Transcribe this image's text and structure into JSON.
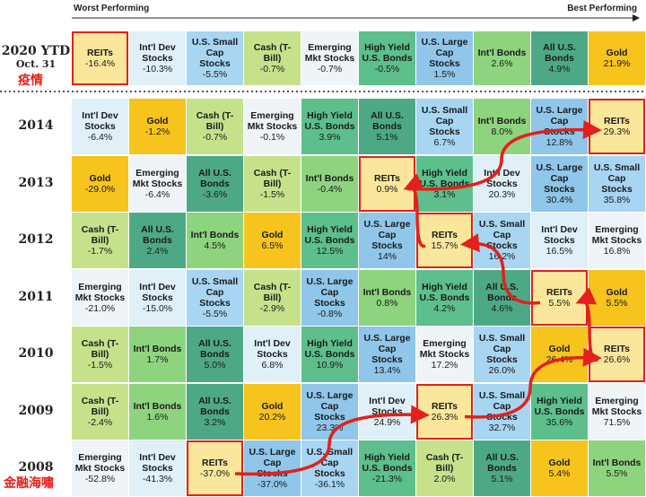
{
  "header": {
    "worst": "Worst Performing",
    "best": "Best Performing"
  },
  "highlight_color": "#e3201b",
  "asset_classes": [
    {
      "name": "REITs",
      "color": "#fbe79b",
      "highlight": true
    },
    {
      "name": "Int'l Dev Stocks",
      "color": "#dff0f9"
    },
    {
      "name": "U.S. Small Cap Stocks",
      "color": "#a7d5f2"
    },
    {
      "name": "Cash (T-Bill)",
      "color": "#c5e28b"
    },
    {
      "name": "Emerging Mkt Stocks",
      "color": "#eef4f7"
    },
    {
      "name": "High Yield U.S. Bonds",
      "color": "#5cbf8c"
    },
    {
      "name": "U.S. Large Cap Stocks",
      "color": "#8fc6ea"
    },
    {
      "name": "Int'l Bonds",
      "color": "#8ed47e"
    },
    {
      "name": "All U.S. Bonds",
      "color": "#4da985"
    },
    {
      "name": "Gold",
      "color": "#f6c41c"
    }
  ],
  "rows": [
    {
      "label": "2020 YTD",
      "sublabel": "Oct. 31",
      "note": "疫情",
      "cells": [
        {
          "asset": 0,
          "value": "-16.4%"
        },
        {
          "asset": 1,
          "value": "-10.3%"
        },
        {
          "asset": 2,
          "value": "-5.5%"
        },
        {
          "asset": 3,
          "value": "-0.7%"
        },
        {
          "asset": 4,
          "value": "-0.7%"
        },
        {
          "asset": 5,
          "value": "-0.5%"
        },
        {
          "asset": 6,
          "value": "1.5%"
        },
        {
          "asset": 7,
          "value": "2.6%"
        },
        {
          "asset": 8,
          "value": "4.9%"
        },
        {
          "asset": 9,
          "value": "21.9%"
        }
      ]
    },
    {
      "label": "2014",
      "cells": [
        {
          "asset": 1,
          "value": "-6.4%"
        },
        {
          "asset": 9,
          "value": "-1.2%"
        },
        {
          "asset": 3,
          "value": "-0.7%"
        },
        {
          "asset": 4,
          "value": "-0.1%"
        },
        {
          "asset": 5,
          "value": "3.9%"
        },
        {
          "asset": 8,
          "value": "5.1%"
        },
        {
          "asset": 2,
          "value": "6.7%"
        },
        {
          "asset": 7,
          "value": "8.0%"
        },
        {
          "asset": 6,
          "value": "12.8%"
        },
        {
          "asset": 0,
          "value": "29.3%"
        }
      ]
    },
    {
      "label": "2013",
      "cells": [
        {
          "asset": 9,
          "value": "-29.0%"
        },
        {
          "asset": 4,
          "value": "-6.4%"
        },
        {
          "asset": 8,
          "value": "-3.6%"
        },
        {
          "asset": 3,
          "value": "-1.5%"
        },
        {
          "asset": 7,
          "value": "-0.4%"
        },
        {
          "asset": 0,
          "value": "0.9%"
        },
        {
          "asset": 5,
          "value": "3.1%"
        },
        {
          "asset": 1,
          "value": "20.3%"
        },
        {
          "asset": 6,
          "value": "30.4%"
        },
        {
          "asset": 2,
          "value": "35.8%"
        }
      ]
    },
    {
      "label": "2012",
      "cells": [
        {
          "asset": 3,
          "value": "-1.7%"
        },
        {
          "asset": 8,
          "value": "2.4%"
        },
        {
          "asset": 7,
          "value": "4.5%"
        },
        {
          "asset": 9,
          "value": "6.5%"
        },
        {
          "asset": 5,
          "value": "12.5%"
        },
        {
          "asset": 6,
          "value": "14%"
        },
        {
          "asset": 0,
          "value": "15.7%"
        },
        {
          "asset": 2,
          "value": "16.2%"
        },
        {
          "asset": 1,
          "value": "16.5%"
        },
        {
          "asset": 4,
          "value": "16.8%"
        }
      ]
    },
    {
      "label": "2011",
      "cells": [
        {
          "asset": 4,
          "value": "-21.0%"
        },
        {
          "asset": 1,
          "value": "-15.0%"
        },
        {
          "asset": 2,
          "value": "-5.5%"
        },
        {
          "asset": 3,
          "value": "-2.9%"
        },
        {
          "asset": 6,
          "value": "-0.8%"
        },
        {
          "asset": 7,
          "value": "0.8%"
        },
        {
          "asset": 5,
          "value": "4.2%"
        },
        {
          "asset": 8,
          "value": "4.6%"
        },
        {
          "asset": 0,
          "value": "5.5%"
        },
        {
          "asset": 9,
          "value": "5.5%"
        }
      ]
    },
    {
      "label": "2010",
      "cells": [
        {
          "asset": 3,
          "value": "-1.5%"
        },
        {
          "asset": 7,
          "value": "1.7%"
        },
        {
          "asset": 8,
          "value": "5.0%"
        },
        {
          "asset": 1,
          "value": "6.8%"
        },
        {
          "asset": 5,
          "value": "10.9%"
        },
        {
          "asset": 6,
          "value": "13.4%"
        },
        {
          "asset": 4,
          "value": "17.2%"
        },
        {
          "asset": 2,
          "value": "26.0%"
        },
        {
          "asset": 9,
          "value": "26.4%"
        },
        {
          "asset": 0,
          "value": "26.6%"
        }
      ]
    },
    {
      "label": "2009",
      "cells": [
        {
          "asset": 3,
          "value": "-2.4%"
        },
        {
          "asset": 7,
          "value": "1.6%"
        },
        {
          "asset": 8,
          "value": "3.2%"
        },
        {
          "asset": 9,
          "value": "20.2%"
        },
        {
          "asset": 6,
          "value": "23.3%"
        },
        {
          "asset": 1,
          "value": "24.9%"
        },
        {
          "asset": 0,
          "value": "26.3%"
        },
        {
          "asset": 2,
          "value": "32.7%"
        },
        {
          "asset": 5,
          "value": "35.6%"
        },
        {
          "asset": 4,
          "value": "71.5%"
        }
      ]
    },
    {
      "label": "2008",
      "note": "金融海嘯",
      "cells": [
        {
          "asset": 4,
          "value": "-52.8%"
        },
        {
          "asset": 1,
          "value": "-41.3%"
        },
        {
          "asset": 0,
          "value": "-37.0%"
        },
        {
          "asset": 6,
          "value": "-37.0%"
        },
        {
          "asset": 2,
          "value": "-36.1%"
        },
        {
          "asset": 5,
          "value": "-21.3%"
        },
        {
          "asset": 3,
          "value": "2.0%"
        },
        {
          "asset": 8,
          "value": "5.1%"
        },
        {
          "asset": 9,
          "value": "5.4%"
        },
        {
          "asset": 7,
          "value": "5.5%"
        }
      ]
    }
  ]
}
